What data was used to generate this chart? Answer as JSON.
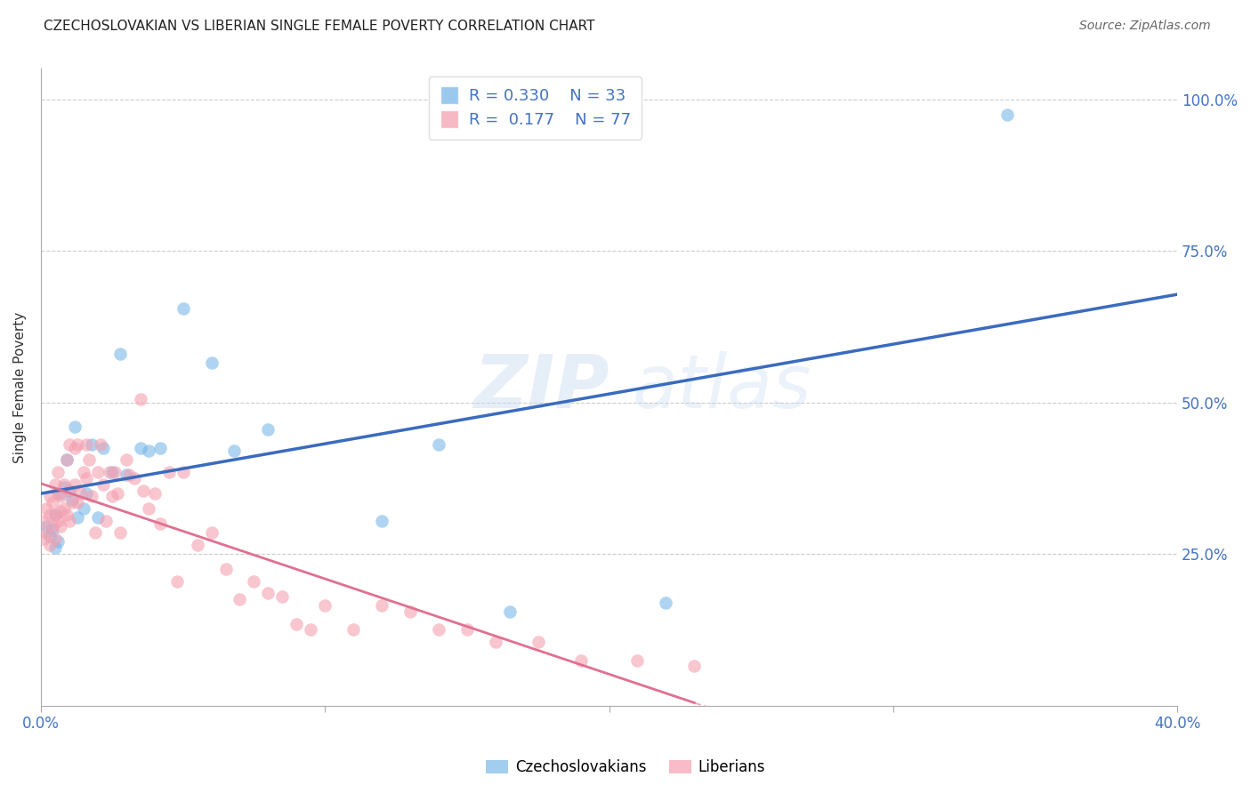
{
  "title": "CZECHOSLOVAKIAN VS LIBERIAN SINGLE FEMALE POVERTY CORRELATION CHART",
  "source": "Source: ZipAtlas.com",
  "ylabel": "Single Female Poverty",
  "xlim": [
    0.0,
    0.4
  ],
  "ylim": [
    0.0,
    1.05
  ],
  "yticks": [
    0.0,
    0.25,
    0.5,
    0.75,
    1.0
  ],
  "ytick_labels": [
    "",
    "25.0%",
    "50.0%",
    "75.0%",
    "100.0%"
  ],
  "xticks": [
    0.0,
    0.1,
    0.2,
    0.3,
    0.4
  ],
  "xtick_labels": [
    "0.0%",
    "",
    "",
    "",
    "40.0%"
  ],
  "czech_color": "#7ab8e8",
  "liberian_color": "#f4a0b0",
  "czech_R": 0.33,
  "czech_N": 33,
  "liberian_R": 0.177,
  "liberian_N": 77,
  "legend_label_czech": "Czechoslovakians",
  "legend_label_liberian": "Liberians",
  "watermark_zip": "ZIP",
  "watermark_atlas": "atlas",
  "background_color": "#ffffff",
  "czech_line_color": "#3a6bbf",
  "liberian_line_color": "#e07090",
  "czech_points_x": [
    0.002,
    0.003,
    0.004,
    0.005,
    0.005,
    0.006,
    0.007,
    0.008,
    0.009,
    0.01,
    0.011,
    0.012,
    0.013,
    0.015,
    0.016,
    0.018,
    0.02,
    0.022,
    0.025,
    0.028,
    0.03,
    0.035,
    0.038,
    0.042,
    0.05,
    0.06,
    0.068,
    0.08,
    0.12,
    0.14,
    0.165,
    0.22,
    0.34
  ],
  "czech_points_y": [
    0.295,
    0.28,
    0.29,
    0.315,
    0.26,
    0.27,
    0.35,
    0.36,
    0.405,
    0.355,
    0.34,
    0.46,
    0.31,
    0.325,
    0.35,
    0.43,
    0.31,
    0.425,
    0.385,
    0.58,
    0.38,
    0.425,
    0.42,
    0.425,
    0.655,
    0.565,
    0.42,
    0.455,
    0.305,
    0.43,
    0.155,
    0.17,
    0.975
  ],
  "liberian_points_x": [
    0.001,
    0.001,
    0.002,
    0.002,
    0.003,
    0.003,
    0.003,
    0.004,
    0.004,
    0.005,
    0.005,
    0.005,
    0.006,
    0.006,
    0.006,
    0.007,
    0.007,
    0.007,
    0.008,
    0.008,
    0.009,
    0.009,
    0.01,
    0.01,
    0.01,
    0.011,
    0.012,
    0.012,
    0.013,
    0.013,
    0.014,
    0.015,
    0.016,
    0.016,
    0.017,
    0.018,
    0.019,
    0.02,
    0.021,
    0.022,
    0.023,
    0.024,
    0.025,
    0.026,
    0.027,
    0.028,
    0.03,
    0.031,
    0.033,
    0.035,
    0.036,
    0.038,
    0.04,
    0.042,
    0.045,
    0.048,
    0.05,
    0.055,
    0.06,
    0.065,
    0.07,
    0.075,
    0.08,
    0.085,
    0.09,
    0.095,
    0.1,
    0.11,
    0.12,
    0.13,
    0.14,
    0.15,
    0.16,
    0.175,
    0.19,
    0.21,
    0.23
  ],
  "liberian_points_y": [
    0.275,
    0.305,
    0.285,
    0.325,
    0.265,
    0.315,
    0.345,
    0.295,
    0.335,
    0.315,
    0.275,
    0.365,
    0.305,
    0.35,
    0.385,
    0.295,
    0.32,
    0.345,
    0.325,
    0.365,
    0.315,
    0.405,
    0.305,
    0.355,
    0.43,
    0.335,
    0.365,
    0.425,
    0.335,
    0.43,
    0.35,
    0.385,
    0.375,
    0.43,
    0.405,
    0.345,
    0.285,
    0.385,
    0.43,
    0.365,
    0.305,
    0.385,
    0.345,
    0.385,
    0.35,
    0.285,
    0.405,
    0.38,
    0.375,
    0.505,
    0.355,
    0.325,
    0.35,
    0.3,
    0.385,
    0.205,
    0.385,
    0.265,
    0.285,
    0.225,
    0.175,
    0.205,
    0.185,
    0.18,
    0.135,
    0.125,
    0.165,
    0.125,
    0.165,
    0.155,
    0.125,
    0.125,
    0.105,
    0.105,
    0.075,
    0.075,
    0.065
  ]
}
